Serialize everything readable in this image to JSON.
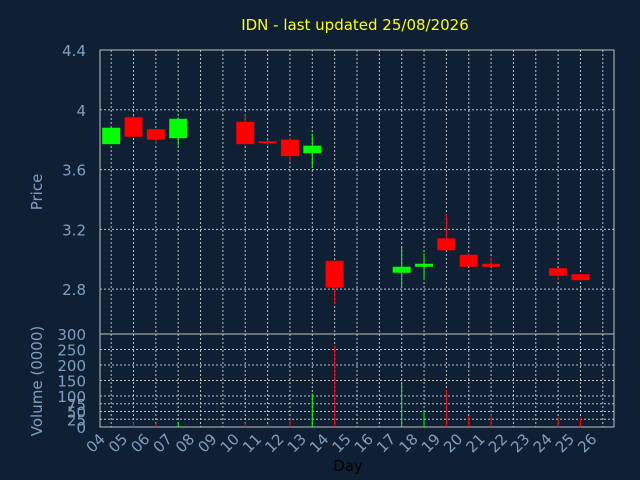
{
  "chart_data": [
    {
      "type": "candlestick",
      "title": "IDN - last updated 25/08/2026",
      "ylabel": "Price",
      "ylim": [
        2.5,
        4.4
      ],
      "yticks": [
        "2.8",
        "3.2",
        "3.6",
        "4",
        "4.4"
      ],
      "grid": true,
      "up_color": "#00ff00",
      "down_color": "#ff0000",
      "candles": [
        {
          "day": "04",
          "open": 3.77,
          "close": 3.88,
          "high": 3.88,
          "low": 3.77
        },
        {
          "day": "05",
          "open": 3.95,
          "close": 3.82,
          "high": 3.96,
          "low": 3.82
        },
        {
          "day": "06",
          "open": 3.87,
          "close": 3.8,
          "high": 3.87,
          "low": 3.77
        },
        {
          "day": "07",
          "open": 3.81,
          "close": 3.94,
          "high": 3.95,
          "low": 3.76
        },
        {
          "day": "10",
          "open": 3.92,
          "close": 3.77,
          "high": 3.97,
          "low": 3.77
        },
        {
          "day": "11",
          "open": 3.79,
          "close": 3.78,
          "high": 3.8,
          "low": 3.76
        },
        {
          "day": "12",
          "open": 3.8,
          "close": 3.69,
          "high": 3.81,
          "low": 3.65
        },
        {
          "day": "13",
          "open": 3.71,
          "close": 3.76,
          "high": 3.84,
          "low": 3.62
        },
        {
          "day": "14",
          "open": 2.99,
          "close": 2.81,
          "high": 2.99,
          "low": 2.7
        },
        {
          "day": "17",
          "open": 2.91,
          "close": 2.95,
          "high": 3.08,
          "low": 2.82
        },
        {
          "day": "18",
          "open": 2.95,
          "close": 2.97,
          "high": 3.04,
          "low": 2.86
        },
        {
          "day": "19",
          "open": 3.14,
          "close": 3.06,
          "high": 3.3,
          "low": 3.06
        },
        {
          "day": "20",
          "open": 3.03,
          "close": 2.95,
          "high": 3.04,
          "low": 2.95
        },
        {
          "day": "21",
          "open": 2.97,
          "close": 2.95,
          "high": 3.01,
          "low": 2.95
        },
        {
          "day": "24",
          "open": 2.94,
          "close": 2.89,
          "high": 2.94,
          "low": 2.86
        },
        {
          "day": "25",
          "open": 2.9,
          "close": 2.86,
          "high": 2.9,
          "low": 2.86
        }
      ]
    },
    {
      "type": "bar",
      "ylabel": "Volume (0000)",
      "xlabel": "Day",
      "ylim": [
        0,
        300
      ],
      "yticks": [
        "0",
        "25",
        "50",
        "75",
        "100",
        "150",
        "200",
        "250",
        "300"
      ],
      "grid": true,
      "categories": [
        "04",
        "05",
        "06",
        "07",
        "08",
        "09",
        "10",
        "11",
        "12",
        "13",
        "14",
        "15",
        "16",
        "17",
        "18",
        "19",
        "20",
        "21",
        "22",
        "23",
        "24",
        "25",
        "26"
      ],
      "volumes": [
        {
          "day": "05",
          "value": 15,
          "color": "#ff0000"
        },
        {
          "day": "06",
          "value": 12,
          "color": "#ff0000"
        },
        {
          "day": "07",
          "value": 15,
          "color": "#00ff00"
        },
        {
          "day": "10",
          "value": 14,
          "color": "#ff0000"
        },
        {
          "day": "11",
          "value": 8,
          "color": "#ff0000"
        },
        {
          "day": "12",
          "value": 24,
          "color": "#ff0000"
        },
        {
          "day": "13",
          "value": 108,
          "color": "#00ff00"
        },
        {
          "day": "14",
          "value": 262,
          "color": "#ff0000"
        },
        {
          "day": "17",
          "value": 140,
          "color": "#00ff00"
        },
        {
          "day": "18",
          "value": 50,
          "color": "#00ff00"
        },
        {
          "day": "19",
          "value": 120,
          "color": "#ff0000"
        },
        {
          "day": "20",
          "value": 35,
          "color": "#ff0000"
        },
        {
          "day": "21",
          "value": 40,
          "color": "#ff0000"
        },
        {
          "day": "24",
          "value": 33,
          "color": "#ff0000"
        },
        {
          "day": "25",
          "value": 30,
          "color": "#ff0000"
        }
      ]
    }
  ]
}
